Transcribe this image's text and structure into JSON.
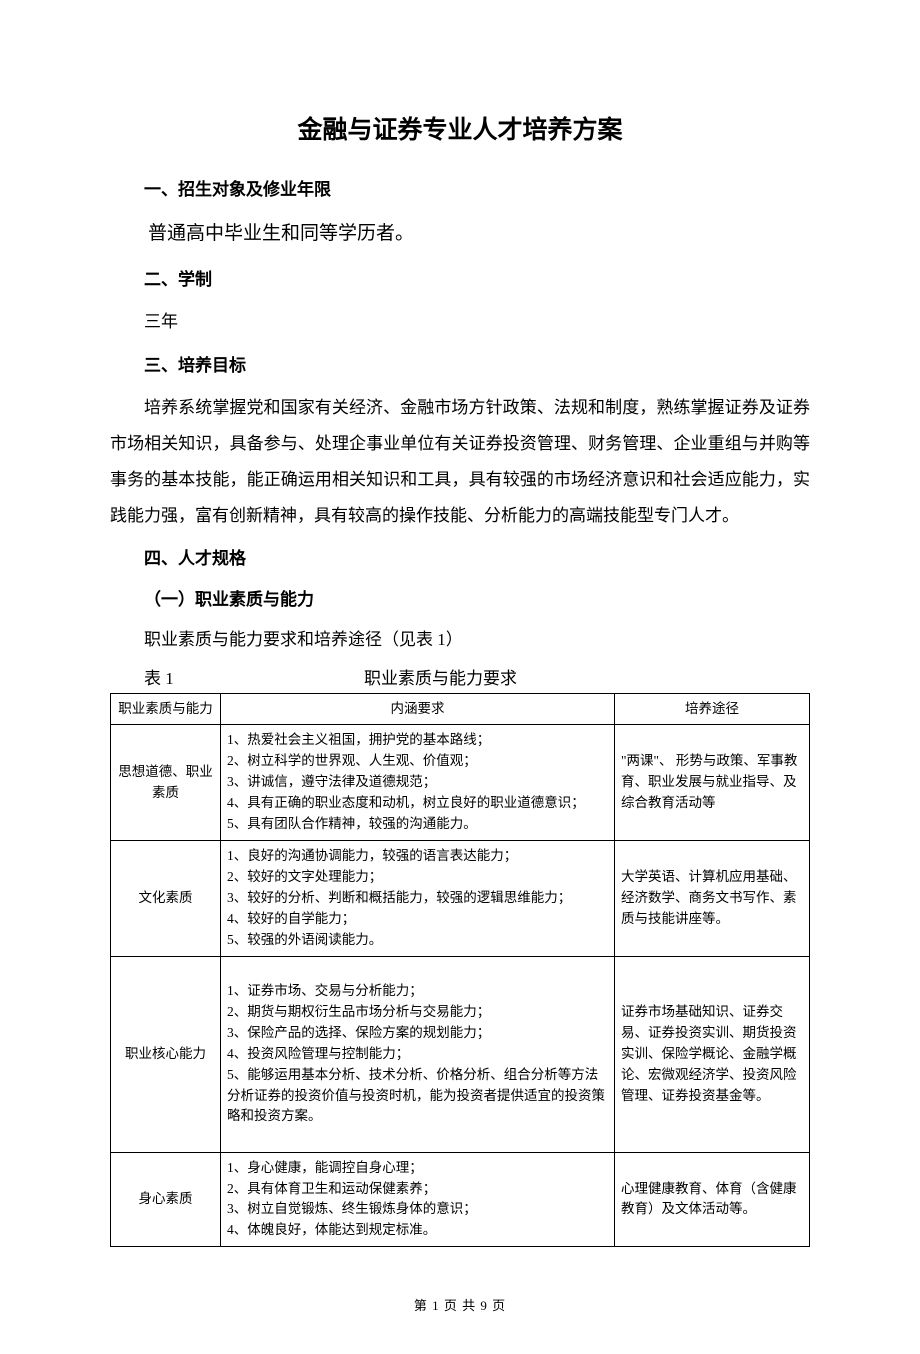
{
  "title": "金融与证券专业人才培养方案",
  "sections": {
    "s1": {
      "head": "一、招生对象及修业年限",
      "body": "普通高中毕业生和同等学历者。"
    },
    "s2": {
      "head": "二、学制",
      "body": "三年"
    },
    "s3": {
      "head": "三、培养目标",
      "body": "培养系统掌握党和国家有关经济、金融市场方针政策、法规和制度，熟练掌握证券及证券市场相关知识，具备参与、处理企事业单位有关证券投资管理、财务管理、企业重组与并购等事务的基本技能，能正确运用相关知识和工具，具有较强的市场经济意识和社会适应能力，实践能力强，富有创新精神，具有较高的操作技能、分析能力的高端技能型专门人才。"
    },
    "s4": {
      "head": "四、人才规格",
      "sub1": "（一）职业素质与能力",
      "caption": "职业素质与能力要求和培养途径（见表 1）",
      "table_label_left": "表 1",
      "table_label_center": "职业素质与能力要求"
    }
  },
  "table": {
    "headers": {
      "c1": "职业素质与能力",
      "c2": "内涵要求",
      "c3": "培养途径"
    },
    "rows": [
      {
        "c1": "思想道德、职业素质",
        "c2": [
          "1、热爱社会主义祖国，拥护党的基本路线；",
          "2、树立科学的世界观、人生观、价值观；",
          "3、讲诚信，遵守法律及道德规范；",
          "4、具有正确的职业态度和动机，树立良好的职业道德意识；",
          "5、具有团队合作精神，较强的沟通能力。"
        ],
        "c3": "\"两课\"、 形势与政策、军事教育、职业发展与就业指导、及综合教育活动等"
      },
      {
        "c1": "文化素质",
        "c2": [
          "1、良好的沟通协调能力，较强的语言表达能力；",
          "2、较好的文字处理能力；",
          "3、较好的分析、判断和概括能力，较强的逻辑思维能力；",
          "4、较好的自学能力；",
          "5、较强的外语阅读能力。"
        ],
        "c3": "大学英语、计算机应用基础、经济数学、商务文书写作、素质与技能讲座等。"
      },
      {
        "c1": "职业核心能力",
        "c2": [
          "1、证券市场、交易与分析能力；",
          "2、期货与期权衍生品市场分析与交易能力；",
          "3、保险产品的选择、保险方案的规划能力；",
          "4、投资风险管理与控制能力；",
          "5、能够运用基本分析、技术分析、价格分析、组合分析等方法分析证券的投资价值与投资时机，能为投资者提供适宜的投资策略和投资方案。"
        ],
        "c3": "证券市场基础知识、证券交易、证券投资实训、期货投资实训、保险学概论、金融学概论、宏微观经济学、投资风险管理、证券投资基金等。",
        "tall": true
      },
      {
        "c1": "身心素质",
        "c2": [
          "1、身心健康，能调控自身心理；",
          "2、具有体育卫生和运动保健素养；",
          "3、树立自觉锻炼、终生锻炼身体的意识；",
          "4、体魄良好，体能达到规定标准。"
        ],
        "c3": "心理健康教育、体育（含健康教育）及文体活动等。"
      }
    ]
  },
  "footer": {
    "prefix": "第",
    "page": "1",
    "mid": "页 共",
    "total": "9",
    "suffix": "页"
  }
}
